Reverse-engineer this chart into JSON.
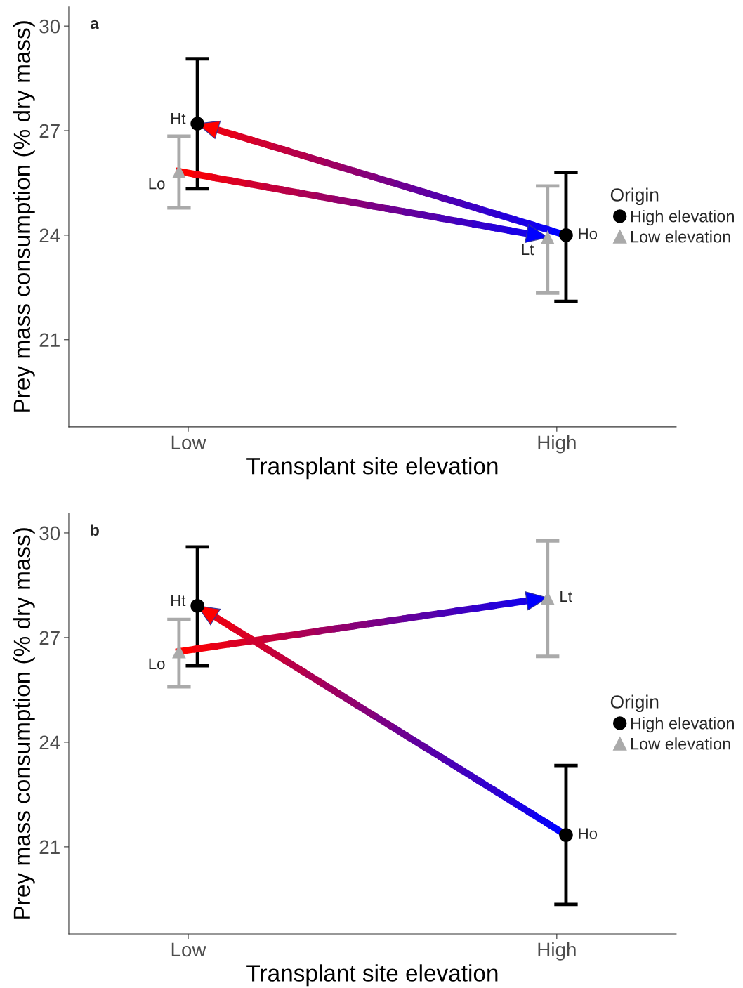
{
  "chart_data": [
    {
      "type": "scatter",
      "title": "a",
      "xlabel": "Transplant site elevation",
      "ylabel": "Prey mass consumption (% dry mass)",
      "legend_title": "Origin",
      "legend": "right",
      "categories": [
        "Low",
        "High"
      ],
      "ylim": [
        18.5,
        30.55
      ],
      "yticks": [
        21,
        24,
        27,
        30
      ],
      "grid": false,
      "series": [
        {
          "name": "High elevation",
          "color": "#000000",
          "marker": "circle",
          "values": [
            27.2,
            24.0
          ],
          "errors": [
            [
              25.33,
              29.06
            ],
            [
              22.1,
              25.8
            ]
          ]
        },
        {
          "name": "Low elevation",
          "color": "#aaaaaa",
          "marker": "triangle",
          "values": [
            25.83,
            23.94
          ],
          "errors": [
            [
              24.78,
              26.84
            ],
            [
              22.34,
              25.41
            ]
          ]
        }
      ],
      "annotations": [
        "Ht",
        "Lo",
        "Ho",
        "Lt"
      ]
    },
    {
      "type": "scatter",
      "title": "b",
      "xlabel": "Transplant site elevation",
      "ylabel": "Prey mass consumption (% dry mass)",
      "legend_title": "Origin",
      "legend": "right",
      "categories": [
        "Low",
        "High"
      ],
      "ylim": [
        18.5,
        30.55
      ],
      "yticks": [
        21,
        24,
        27,
        30
      ],
      "grid": false,
      "series": [
        {
          "name": "High elevation",
          "color": "#000000",
          "marker": "circle",
          "values": [
            27.91,
            21.34
          ],
          "errors": [
            [
              26.19,
              29.6
            ],
            [
              19.35,
              23.33
            ]
          ]
        },
        {
          "name": "Low elevation",
          "color": "#aaaaaa",
          "marker": "triangle",
          "values": [
            26.6,
            28.14
          ],
          "errors": [
            [
              25.59,
              27.52
            ],
            [
              26.46,
              29.77
            ]
          ]
        }
      ],
      "annotations": [
        "Ht",
        "Lo",
        "Ho",
        "Lt"
      ]
    }
  ]
}
